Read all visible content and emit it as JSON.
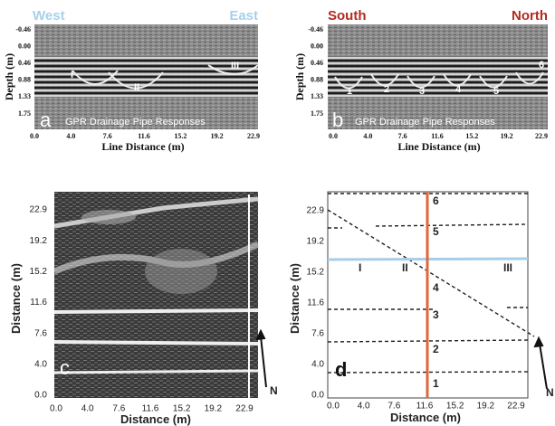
{
  "panels": [
    {
      "letter": "a",
      "left_direction": "West",
      "right_direction": "East",
      "y_label": "Depth (m)",
      "x_label": "Line Distance (m)",
      "y_ticks": [
        "-0.46",
        "0.00",
        "0.46",
        "0.88",
        "1.33",
        "1.75"
      ],
      "x_ticks": [
        "0.0",
        "4.0",
        "7.6",
        "11.6",
        "15.2",
        "19.2",
        "22.9"
      ],
      "caption": "GPR Drainage Pipe Responses",
      "markers": [
        "I",
        "II",
        "III"
      ]
    },
    {
      "letter": "b",
      "left_direction": "South",
      "right_direction": "North",
      "y_label": "Depth (m)",
      "x_label": "Line Distance (m)",
      "y_ticks": [
        "-0.46",
        "0.00",
        "0.46",
        "0.88",
        "1.33",
        "1.75"
      ],
      "x_ticks": [
        "0.0",
        "4.0",
        "7.6",
        "11.6",
        "15.2",
        "19.2",
        "22.9"
      ],
      "caption": "GPR Drainage Pipe Responses",
      "markers": [
        "1",
        "2",
        "3",
        "4",
        "5",
        "6"
      ]
    },
    {
      "letter": "c",
      "y_label": "Distance (m)",
      "x_label": "Distance (m)",
      "y_ticks": [
        "0.0",
        "4.0",
        "7.6",
        "11.6",
        "15.2",
        "19.2",
        "22.9"
      ],
      "x_ticks": [
        "0.0",
        "4.0",
        "7.6",
        "11.6",
        "15.2",
        "19.2",
        "22.9"
      ],
      "north": "N"
    },
    {
      "letter": "d",
      "y_label": "Distance (m)",
      "x_label": "Distance (m)",
      "y_ticks": [
        "0.0",
        "4.0",
        "7.6",
        "11.6",
        "15.2",
        "19.2",
        "22.9"
      ],
      "x_ticks": [
        "0.0",
        "4.0",
        "7.6",
        "11.6",
        "15.2",
        "19.2",
        "22.9"
      ],
      "north": "N",
      "pipes": [
        "1",
        "2",
        "3",
        "4",
        "5",
        "6"
      ],
      "markers": [
        "I",
        "II",
        "III"
      ]
    }
  ]
}
